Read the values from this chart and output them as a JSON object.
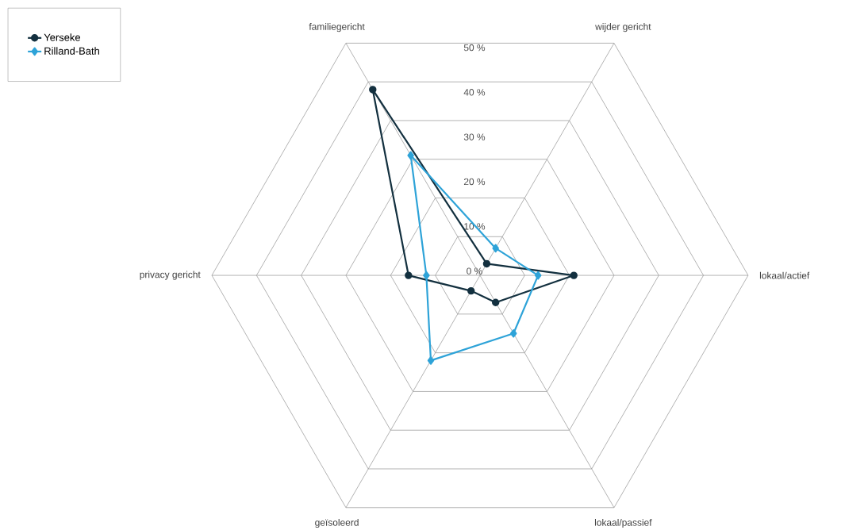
{
  "chart_data": {
    "type": "radar",
    "categories": [
      "wijder gericht",
      "lokaal/actief",
      "lokaal/passief",
      "geïsoleerd",
      "privacy gericht",
      "familiegericht"
    ],
    "series": [
      {
        "name": "Yerseke",
        "color": "#13303f",
        "marker": "circle",
        "values": [
          3,
          21,
          7,
          4,
          16,
          48
        ]
      },
      {
        "name": "Rilland-Bath",
        "color": "#2ea3d8",
        "marker": "diamond",
        "values": [
          7,
          13,
          15,
          22,
          12,
          31
        ]
      }
    ],
    "ylim": [
      0,
      60
    ],
    "yticks": [
      {
        "value": 0,
        "label": "0 %"
      },
      {
        "value": 10,
        "label": "10 %"
      },
      {
        "value": 20,
        "label": "20 %"
      },
      {
        "value": 30,
        "label": "30 %"
      },
      {
        "value": 40,
        "label": "40 %"
      },
      {
        "value": 50,
        "label": "50 %"
      }
    ],
    "grid": true,
    "legend": "top left"
  }
}
